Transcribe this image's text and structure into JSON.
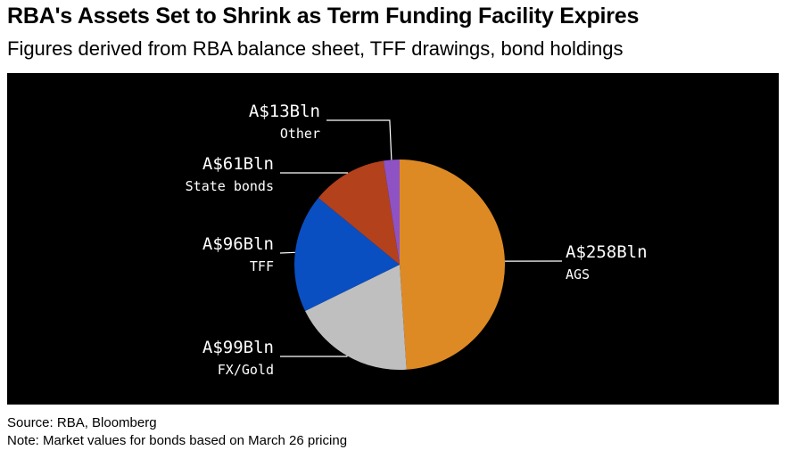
{
  "header": {
    "title": "RBA's Assets Set to Shrink as Term Funding Facility Expires",
    "subtitle": "Figures derived from RBA balance sheet, TFF drawings, bond holdings"
  },
  "footer": {
    "source": "Source: RBA, Bloomberg",
    "note": "Note: Market values for bonds based on March 26 pricing"
  },
  "chart_data": {
    "type": "pie",
    "title": "RBA's Assets Set to Shrink as Term Funding Facility Expires",
    "subtitle": "Figures derived from RBA balance sheet, TFF drawings, bond holdings",
    "slices": [
      {
        "label": "AGS",
        "value": 258,
        "value_label": "A$258Bln",
        "color": "#dd8a25"
      },
      {
        "label": "FX/Gold",
        "value": 99,
        "value_label": "A$99Bln",
        "color": "#bfbfbf"
      },
      {
        "label": "TFF",
        "value": 96,
        "value_label": "A$96Bln",
        "color": "#0a4fc2"
      },
      {
        "label": "State bonds",
        "value": 61,
        "value_label": "A$61Bln",
        "color": "#b3411c"
      },
      {
        "label": "Other",
        "value": 13,
        "value_label": "A$13Bln",
        "color": "#8e52c4"
      }
    ],
    "background": "#000000",
    "start_angle": "12 o'clock",
    "direction": "clockwise"
  }
}
